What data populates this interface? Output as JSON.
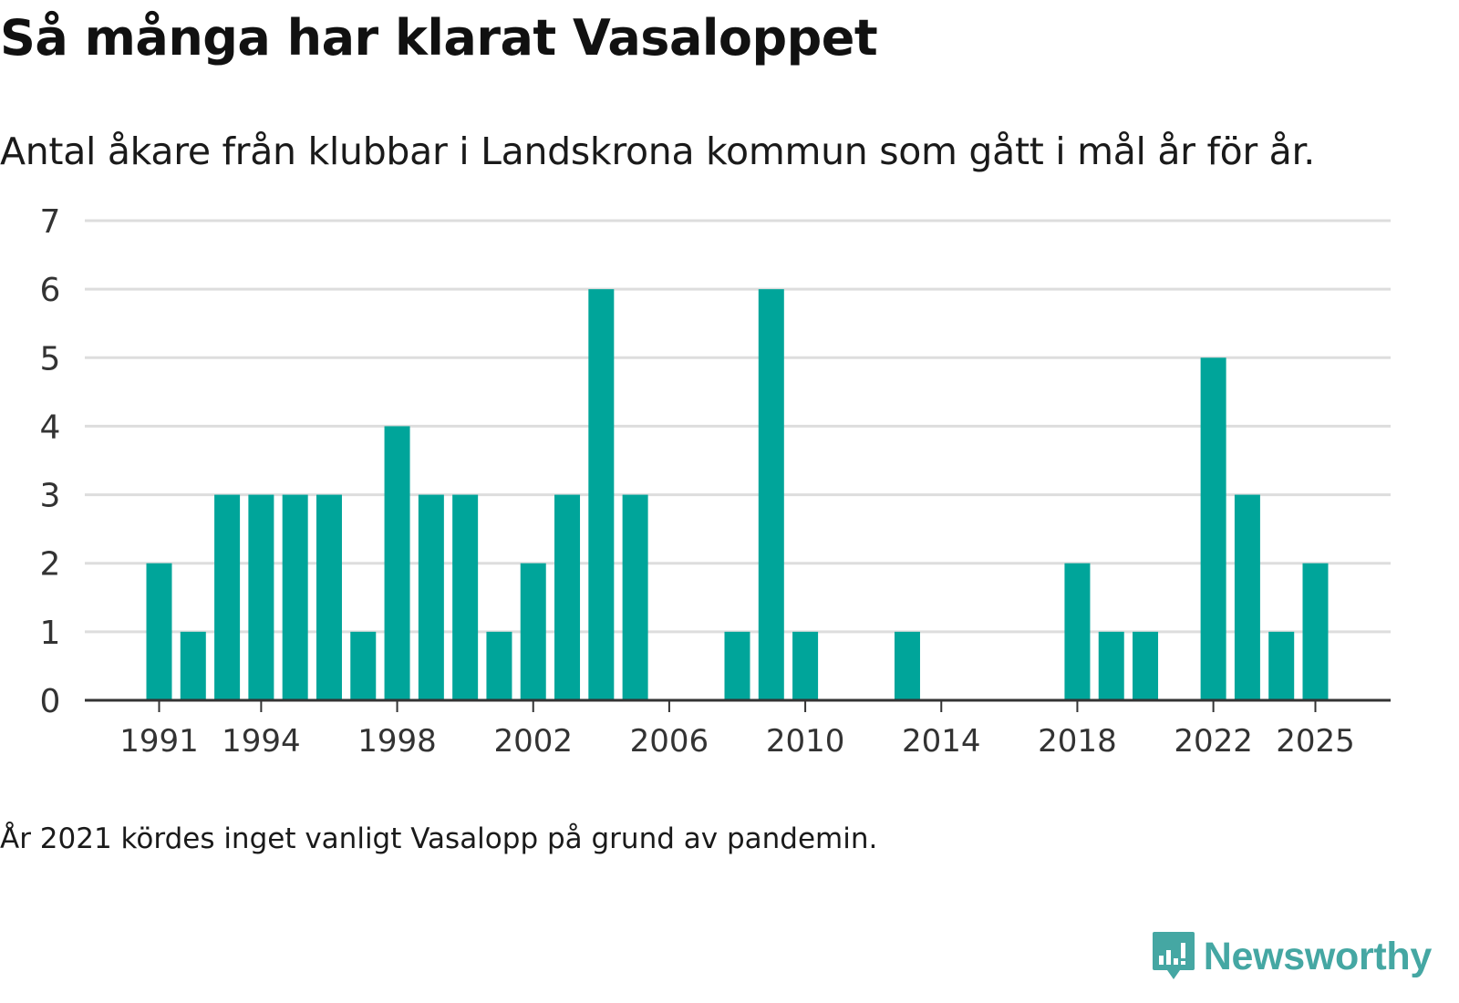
{
  "title": "Så många har klarat Vasaloppet",
  "subtitle": "Antal åkare från klubbar i Landskrona kommun som gått i mål år för år.",
  "note": "År 2021 kördes inget vanligt Vasalopp på grund av pandemin.",
  "brand": {
    "name": "Newsworthy",
    "color": "#45a7a3"
  },
  "colors": {
    "bar": "#00a59a",
    "grid": "#dddddd",
    "axis": "#333333"
  },
  "chart_data": {
    "type": "bar",
    "title": "Så många har klarat Vasaloppet",
    "xlabel": "",
    "ylabel": "",
    "ylim": [
      0,
      7
    ],
    "yticks": [
      0,
      1,
      2,
      3,
      4,
      5,
      6,
      7
    ],
    "xtick_labels": [
      "1991",
      "1994",
      "1998",
      "2002",
      "2006",
      "2010",
      "2014",
      "2018",
      "2022",
      "2025"
    ],
    "grid": true,
    "legend": "none",
    "categories": [
      1991,
      1992,
      1993,
      1994,
      1995,
      1996,
      1997,
      1998,
      1999,
      2000,
      2001,
      2002,
      2003,
      2004,
      2005,
      2006,
      2007,
      2008,
      2009,
      2010,
      2011,
      2012,
      2013,
      2014,
      2015,
      2016,
      2017,
      2018,
      2019,
      2020,
      2021,
      2022,
      2023,
      2024,
      2025
    ],
    "values": [
      2,
      1,
      3,
      3,
      3,
      3,
      1,
      4,
      3,
      3,
      1,
      2,
      3,
      6,
      3,
      0,
      0,
      1,
      6,
      1,
      0,
      0,
      1,
      0,
      0,
      0,
      0,
      2,
      1,
      1,
      0,
      5,
      3,
      1,
      2
    ]
  }
}
